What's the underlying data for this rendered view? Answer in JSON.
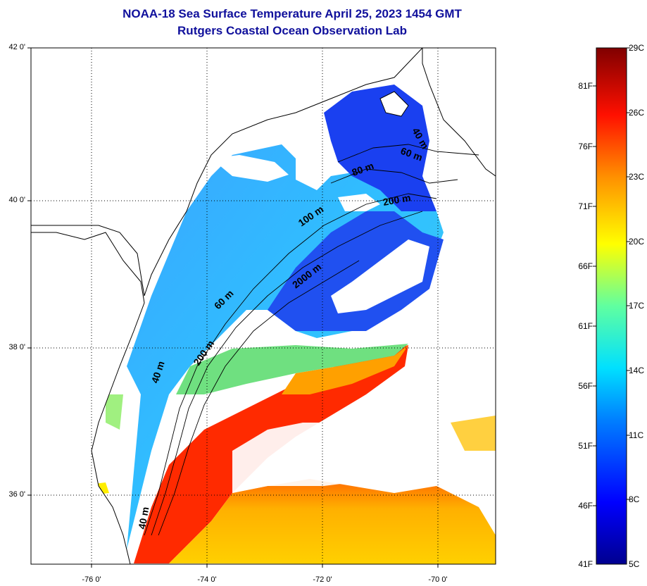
{
  "title": {
    "line1": "NOAA-18 Sea Surface Temperature April 25, 2023 1454 GMT",
    "line2": "Rutgers Coastal Ocean Observation Lab"
  },
  "axes": {
    "y_labels": [
      "42 0'",
      "40 0'",
      "38 0'",
      "36 0'"
    ],
    "x_labels": [
      "-76 0'",
      "-74 0'",
      "-72 0'",
      "-70 0'"
    ],
    "lat_range": [
      35.0,
      42.0
    ],
    "lon_range": [
      -77.0,
      -69.0
    ],
    "grid": "dotted"
  },
  "isobath_labels": [
    "40 m",
    "60 m",
    "80 m",
    "200 m",
    "100 m",
    "2000 m",
    "60 m",
    "200 m",
    "40 m",
    "40 m"
  ],
  "colorbar": {
    "fahrenheit": [
      "81F",
      "76F",
      "71F",
      "66F",
      "61F",
      "56F",
      "51F",
      "46F",
      "41F"
    ],
    "celsius": [
      "29C",
      "26C",
      "23C",
      "20C",
      "17C",
      "14C",
      "11C",
      "8C",
      "5C"
    ],
    "range_c": [
      5,
      29
    ]
  },
  "colors": {
    "title": "#10109c",
    "land": "#ffffff",
    "coast": "#000000"
  }
}
